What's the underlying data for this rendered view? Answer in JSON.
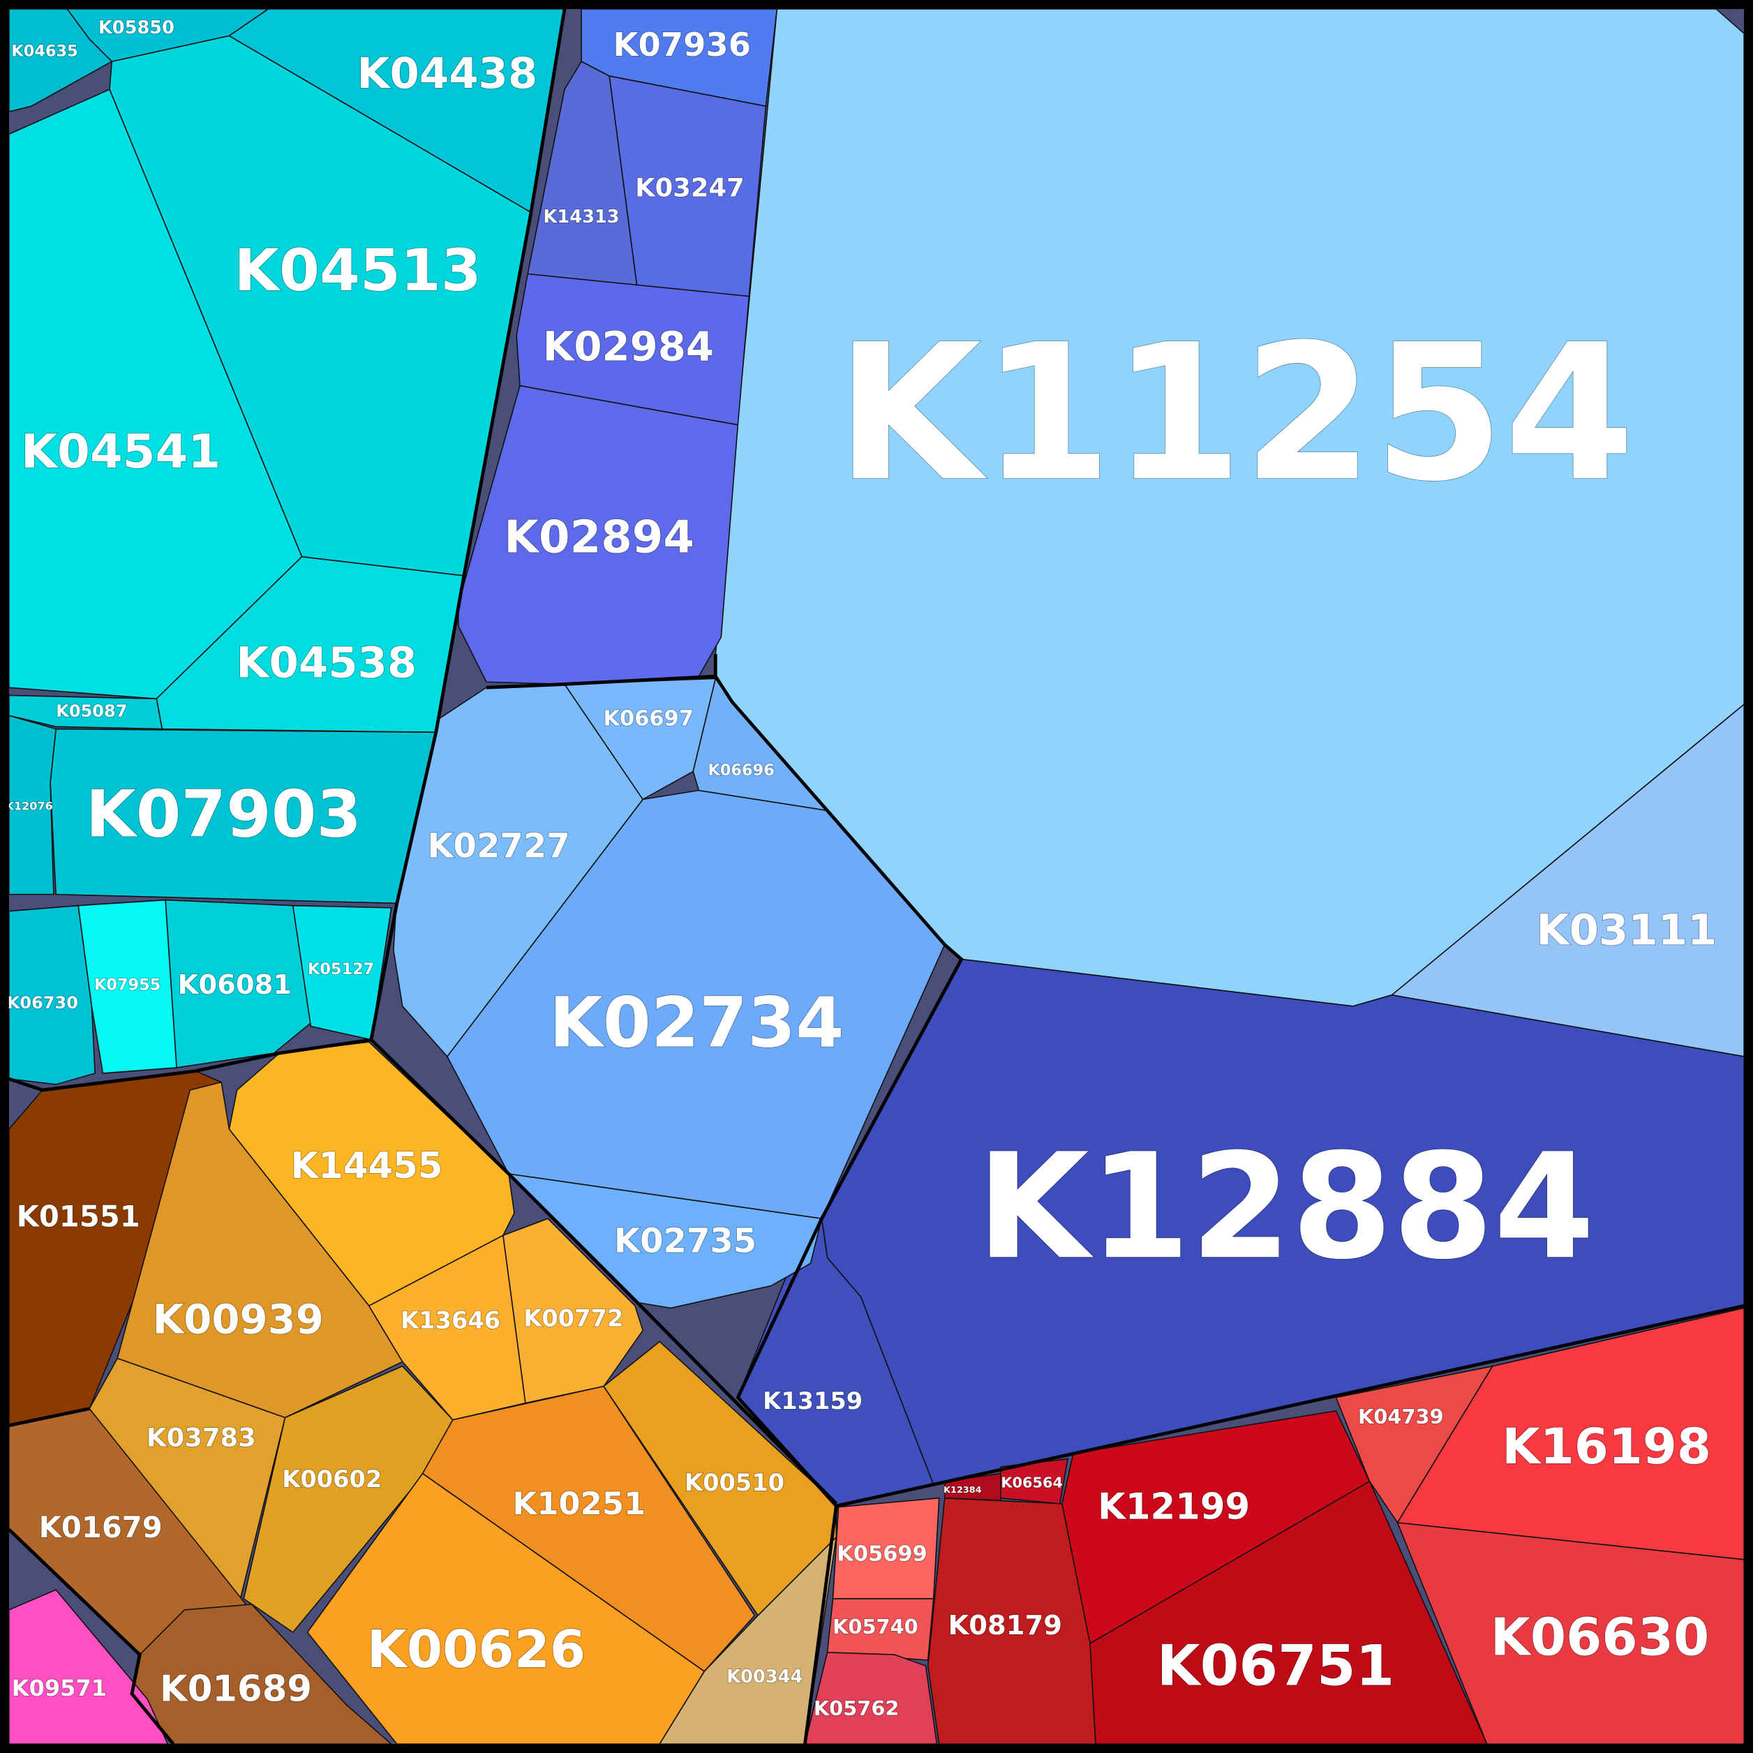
{
  "cells": [
    {
      "label": "K11254",
      "color": "#90d3fc"
    },
    {
      "label": "K03111",
      "color": "#94c4fa"
    },
    {
      "label": "K12884",
      "color": "#3d4dbd"
    },
    {
      "label": "K13159",
      "color": "#3f4fbc"
    },
    {
      "label": "K02734",
      "color": "#6daafa"
    },
    {
      "label": "K02727",
      "color": "#7bbcfb"
    },
    {
      "label": "K06697",
      "color": "#78b8fb"
    },
    {
      "label": "K06696",
      "color": "#72b0f8"
    },
    {
      "label": "K02735",
      "color": "#6db0fb"
    },
    {
      "label": "K07936",
      "color": "#517cf0"
    },
    {
      "label": "K03247",
      "color": "#586ce5"
    },
    {
      "label": "K14313",
      "color": "#586cd8"
    },
    {
      "label": "K02984",
      "color": "#5c69ea"
    },
    {
      "label": "K02894",
      "color": "#5c6aeb"
    },
    {
      "label": "K04513",
      "color": "#00d6dc"
    },
    {
      "label": "K04438",
      "color": "#00c4d8"
    },
    {
      "label": "K04541",
      "color": "#00e0e4"
    },
    {
      "label": "K04538",
      "color": "#00dce0"
    },
    {
      "label": "K05850",
      "color": "#00bfd4"
    },
    {
      "label": "K04635",
      "color": "#00bdd2"
    },
    {
      "label": "K05087",
      "color": "#00cdd8"
    },
    {
      "label": "K07903",
      "color": "#00c4d4"
    },
    {
      "label": "K12076",
      "color": "#00bfd0"
    },
    {
      "label": "K06730",
      "color": "#00c2d6"
    },
    {
      "label": "K07955",
      "color": "#08f8f8"
    },
    {
      "label": "K06081",
      "color": "#00ced8"
    },
    {
      "label": "K05127",
      "color": "#00e0e6"
    },
    {
      "label": "K14455",
      "color": "#fdb523"
    },
    {
      "label": "K01551",
      "color": "#8b3a00"
    },
    {
      "label": "K00939",
      "color": "#df9828"
    },
    {
      "label": "K13646",
      "color": "#fdb02d"
    },
    {
      "label": "K00772",
      "color": "#fbb033"
    },
    {
      "label": "K03783",
      "color": "#e2a02c"
    },
    {
      "label": "K00602",
      "color": "#e0a022"
    },
    {
      "label": "K10251",
      "color": "#f18f20"
    },
    {
      "label": "K00510",
      "color": "#e9a01e"
    },
    {
      "label": "K00626",
      "color": "#fca022"
    },
    {
      "label": "K00344",
      "color": "#d5b272"
    },
    {
      "label": "K01679",
      "color": "#b2682a"
    },
    {
      "label": "K01689",
      "color": "#a65f2a"
    },
    {
      "label": "K09571",
      "color": "#ff4fc3"
    },
    {
      "label": "K05699",
      "color": "#fd6660"
    },
    {
      "label": "K05740",
      "color": "#f05456"
    },
    {
      "label": "K05762",
      "color": "#e04058"
    },
    {
      "label": "K08179",
      "color": "#c01c1e"
    },
    {
      "label": "K12199",
      "color": "#cc081a"
    },
    {
      "label": "K06751",
      "color": "#c00a16"
    },
    {
      "label": "K04739",
      "color": "#ec4a48"
    },
    {
      "label": "K16198",
      "color": "#f73a42"
    },
    {
      "label": "K06630",
      "color": "#e83a40"
    },
    {
      "label": "K06564",
      "color": "#c91024"
    },
    {
      "label": "K12384",
      "color": "#b00a1e"
    }
  ]
}
